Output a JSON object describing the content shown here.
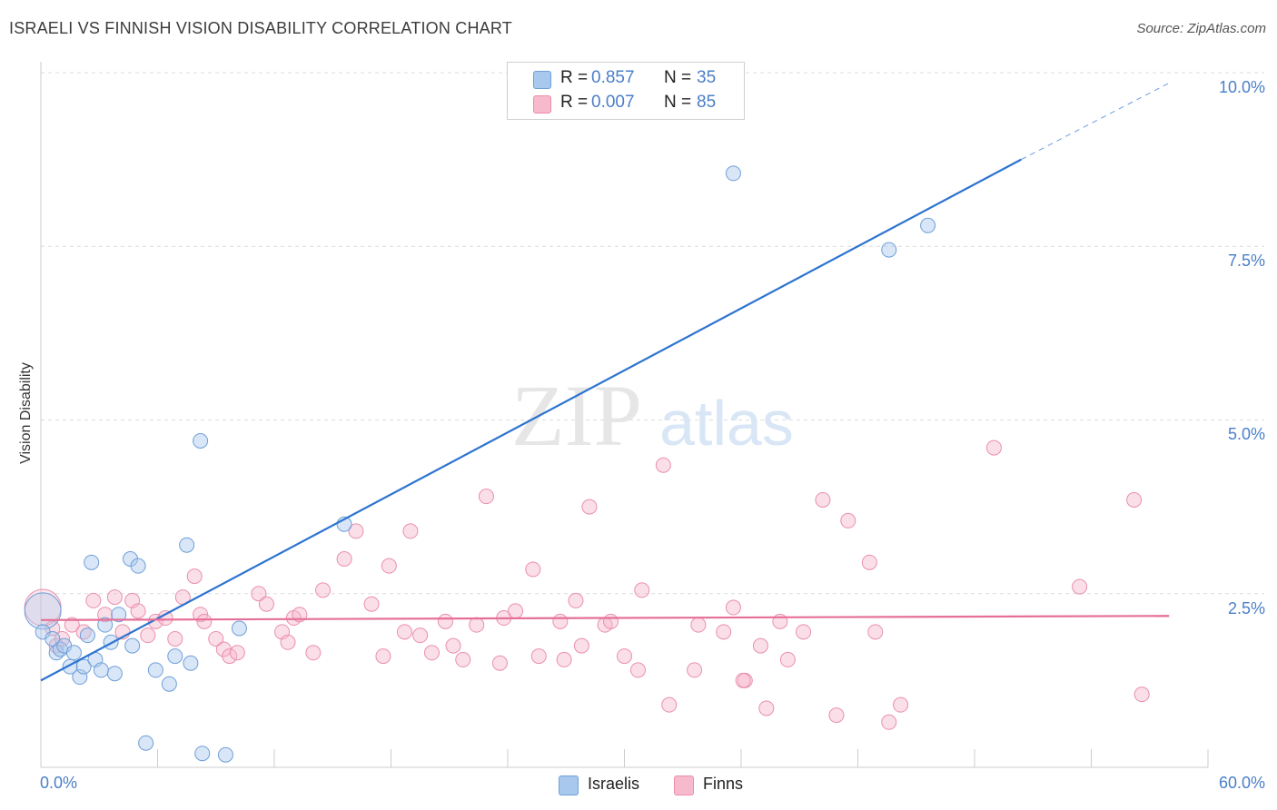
{
  "title": "ISRAELI VS FINNISH VISION DISABILITY CORRELATION CHART",
  "source": "Source: ZipAtlas.com",
  "colors": {
    "israelis": "#a9c8ee",
    "israelis_stroke": "#6f9fd8",
    "israelis_line": "#2d74d0",
    "finns": "#f7b9cc",
    "finns_stroke": "#ea8fac",
    "finns_line": "#e56f98",
    "accent_text": "#4a7fc8"
  },
  "legend": {
    "rows": [
      {
        "r_label": "R =",
        "r_value": "0.857",
        "n_label": "N =",
        "n_value": "35"
      },
      {
        "r_label": "R =",
        "r_value": "0.007",
        "n_label": "N =",
        "n_value": "85"
      }
    ]
  },
  "chart_data": {
    "type": "scatter",
    "title": "ISRAELI VS FINNISH VISION DISABILITY CORRELATION CHART",
    "xlabel": "",
    "ylabel": "Vision Disability",
    "xlim": [
      0,
      60
    ],
    "ylim": [
      0,
      10
    ],
    "x_tick_labels": [
      "0.0%",
      "60.0%"
    ],
    "y_tick_labels": [
      "2.5%",
      "5.0%",
      "7.5%",
      "10.0%"
    ],
    "y_ticks": [
      2.5,
      5.0,
      7.5,
      10.0
    ],
    "grid": "horizontal dashed",
    "legend_position": "top-center",
    "watermark": "ZIPatlas",
    "series": [
      {
        "name": "Israelis",
        "r": 0.857,
        "n": 35,
        "trend": {
          "x": [
            0,
            50.4
          ],
          "y": [
            1.25,
            8.75
          ],
          "dashed_extension_to": [
            58,
            9.85
          ]
        },
        "points": [
          [
            0.1,
            2.25
          ],
          [
            0.1,
            1.95
          ],
          [
            0.6,
            1.85
          ],
          [
            0.8,
            1.65
          ],
          [
            1.0,
            1.7
          ],
          [
            1.2,
            1.75
          ],
          [
            1.5,
            1.45
          ],
          [
            1.7,
            1.65
          ],
          [
            2.0,
            1.3
          ],
          [
            2.2,
            1.45
          ],
          [
            2.4,
            1.9
          ],
          [
            2.6,
            2.95
          ],
          [
            2.8,
            1.55
          ],
          [
            3.1,
            1.4
          ],
          [
            3.3,
            2.05
          ],
          [
            3.6,
            1.8
          ],
          [
            3.8,
            1.35
          ],
          [
            4.0,
            2.2
          ],
          [
            4.6,
            3.0
          ],
          [
            4.7,
            1.75
          ],
          [
            5.0,
            2.9
          ],
          [
            5.4,
            0.35
          ],
          [
            5.9,
            1.4
          ],
          [
            6.6,
            1.2
          ],
          [
            6.9,
            1.6
          ],
          [
            7.5,
            3.2
          ],
          [
            7.7,
            1.5
          ],
          [
            8.2,
            4.7
          ],
          [
            8.3,
            0.2
          ],
          [
            9.5,
            0.18
          ],
          [
            10.2,
            2.0
          ],
          [
            15.6,
            3.5
          ],
          [
            35.6,
            8.55
          ],
          [
            43.6,
            7.45
          ],
          [
            45.6,
            7.8
          ]
        ]
      },
      {
        "name": "Finns",
        "r": 0.007,
        "n": 85,
        "trend": {
          "x": [
            0,
            58
          ],
          "y": [
            2.12,
            2.18
          ]
        },
        "points": [
          [
            0.1,
            2.3
          ],
          [
            0.6,
            2.0
          ],
          [
            0.8,
            1.75
          ],
          [
            1.1,
            1.85
          ],
          [
            1.6,
            2.05
          ],
          [
            2.2,
            1.95
          ],
          [
            2.7,
            2.4
          ],
          [
            3.3,
            2.2
          ],
          [
            3.8,
            2.45
          ],
          [
            4.2,
            1.95
          ],
          [
            4.7,
            2.4
          ],
          [
            5.0,
            2.25
          ],
          [
            5.5,
            1.9
          ],
          [
            5.9,
            2.1
          ],
          [
            6.4,
            2.15
          ],
          [
            6.9,
            1.85
          ],
          [
            7.3,
            2.45
          ],
          [
            7.9,
            2.75
          ],
          [
            8.2,
            2.2
          ],
          [
            8.4,
            2.1
          ],
          [
            9.0,
            1.85
          ],
          [
            9.4,
            1.7
          ],
          [
            9.7,
            1.6
          ],
          [
            10.1,
            1.65
          ],
          [
            11.2,
            2.5
          ],
          [
            11.6,
            2.35
          ],
          [
            12.4,
            1.95
          ],
          [
            12.7,
            1.8
          ],
          [
            13.0,
            2.15
          ],
          [
            13.3,
            2.2
          ],
          [
            14.0,
            1.65
          ],
          [
            14.5,
            2.55
          ],
          [
            15.6,
            3.0
          ],
          [
            16.2,
            3.4
          ],
          [
            17.0,
            2.35
          ],
          [
            17.6,
            1.6
          ],
          [
            17.9,
            2.9
          ],
          [
            18.7,
            1.95
          ],
          [
            19.0,
            3.4
          ],
          [
            19.5,
            1.9
          ],
          [
            20.1,
            1.65
          ],
          [
            20.8,
            2.1
          ],
          [
            21.2,
            1.75
          ],
          [
            21.7,
            1.55
          ],
          [
            22.4,
            2.05
          ],
          [
            22.9,
            3.9
          ],
          [
            23.6,
            1.5
          ],
          [
            23.8,
            2.15
          ],
          [
            24.4,
            2.25
          ],
          [
            25.3,
            2.85
          ],
          [
            25.6,
            1.6
          ],
          [
            26.7,
            2.1
          ],
          [
            26.9,
            1.55
          ],
          [
            27.5,
            2.4
          ],
          [
            27.8,
            1.75
          ],
          [
            28.2,
            3.75
          ],
          [
            29.0,
            2.05
          ],
          [
            29.3,
            2.1
          ],
          [
            30.0,
            1.6
          ],
          [
            30.7,
            1.4
          ],
          [
            30.9,
            2.55
          ],
          [
            32.0,
            4.35
          ],
          [
            32.3,
            0.9
          ],
          [
            33.6,
            1.4
          ],
          [
            33.8,
            2.05
          ],
          [
            35.1,
            1.95
          ],
          [
            35.6,
            2.3
          ],
          [
            36.2,
            1.25
          ],
          [
            37.0,
            1.75
          ],
          [
            37.3,
            0.85
          ],
          [
            38.0,
            2.1
          ],
          [
            39.2,
            1.95
          ],
          [
            40.2,
            3.85
          ],
          [
            40.9,
            0.75
          ],
          [
            41.5,
            3.55
          ],
          [
            42.6,
            2.95
          ],
          [
            42.9,
            1.95
          ],
          [
            43.6,
            0.65
          ],
          [
            44.2,
            0.9
          ],
          [
            49.0,
            4.6
          ],
          [
            53.4,
            2.6
          ],
          [
            56.2,
            3.85
          ],
          [
            56.6,
            1.05
          ],
          [
            38.4,
            1.55
          ],
          [
            36.1,
            1.25
          ]
        ]
      }
    ]
  },
  "y_axis_label": "Vision Disability",
  "x_ticks": {
    "left": "0.0%",
    "right": "60.0%"
  },
  "y_ticks": [
    "2.5%",
    "5.0%",
    "7.5%",
    "10.0%"
  ],
  "bottom_legend": {
    "israelis": "Israelis",
    "finns": "Finns"
  }
}
